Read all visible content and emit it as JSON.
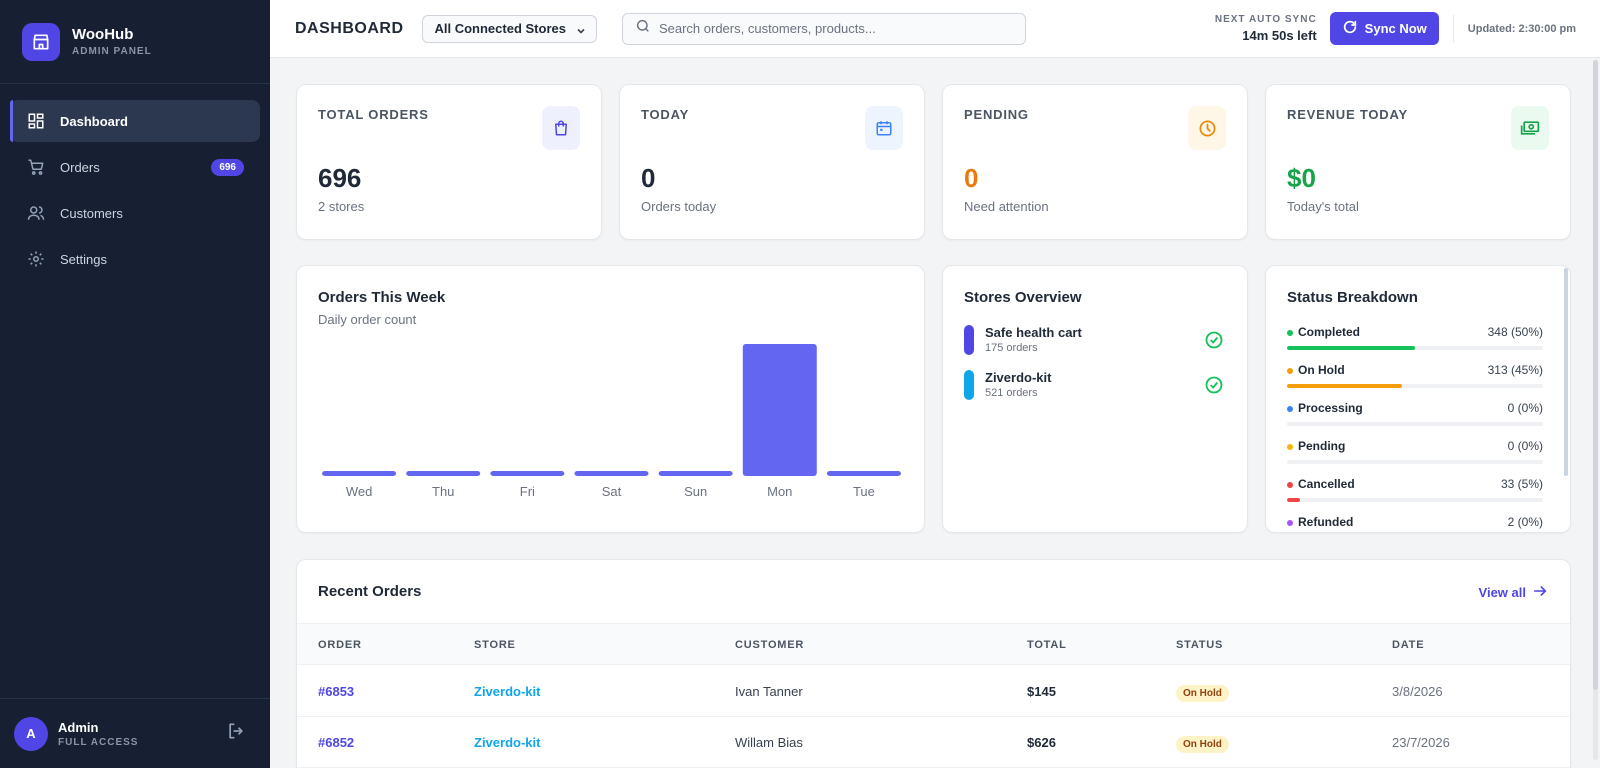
{
  "brand": {
    "name": "WooHub",
    "subtitle": "ADMIN PANEL"
  },
  "sidebar": {
    "items": [
      {
        "label": "Dashboard",
        "icon": "dashboard-icon",
        "active": true
      },
      {
        "label": "Orders",
        "icon": "cart-icon",
        "badge": "696"
      },
      {
        "label": "Customers",
        "icon": "users-icon"
      },
      {
        "label": "Settings",
        "icon": "gear-icon"
      }
    ]
  },
  "user": {
    "initial": "A",
    "name": "Admin",
    "role": "FULL ACCESS"
  },
  "header": {
    "title": "DASHBOARD",
    "store_filter": "All Connected Stores",
    "search_placeholder": "Search orders, customers, products...",
    "sync_label": "NEXT AUTO SYNC",
    "sync_time": "14m 50s left",
    "sync_button": "Sync Now",
    "updated": "Updated: 2:30:00 pm"
  },
  "stats": [
    {
      "label": "TOTAL ORDERS",
      "value": "696",
      "sub": "2 stores",
      "color": "#1f2937",
      "icon": "shopping-bag-icon",
      "icon_bg": "#eef0fd",
      "icon_color": "#4f46e5"
    },
    {
      "label": "TODAY",
      "value": "0",
      "sub": "Orders today",
      "color": "#1f2937",
      "icon": "calendar-icon",
      "icon_bg": "#eef4fd",
      "icon_color": "#3b82f6"
    },
    {
      "label": "PENDING",
      "value": "0",
      "sub": "Need attention",
      "color": "#ea7a0c",
      "icon": "clock-icon",
      "icon_bg": "#fef6e6",
      "icon_color": "#e88a0a"
    },
    {
      "label": "REVENUE TODAY",
      "value": "$0",
      "sub": "Today's total",
      "color": "#16a34a",
      "icon": "cash-icon",
      "icon_bg": "#eafaf0",
      "icon_color": "#16a34a"
    }
  ],
  "weekly": {
    "title": "Orders This Week",
    "subtitle": "Daily order count"
  },
  "chart_data": {
    "type": "bar",
    "title": "Orders This Week",
    "categories": [
      "Wed",
      "Thu",
      "Fri",
      "Sat",
      "Sun",
      "Mon",
      "Tue"
    ],
    "values": [
      0,
      0,
      0,
      0,
      0,
      1,
      0
    ],
    "color": "#6366f1"
  },
  "stores": {
    "title": "Stores Overview",
    "items": [
      {
        "name": "Safe health cart",
        "count": "175 orders",
        "color": "#4f46e5"
      },
      {
        "name": "Ziverdo-kit",
        "count": "521 orders",
        "color": "#0ea5e9"
      }
    ]
  },
  "status": {
    "title": "Status Breakdown",
    "items": [
      {
        "name": "Completed",
        "value": "348 (50%)",
        "pct": 50,
        "color": "#16c05a"
      },
      {
        "name": "On Hold",
        "value": "313 (45%)",
        "pct": 45,
        "color": "#f59e0b"
      },
      {
        "name": "Processing",
        "value": "0 (0%)",
        "pct": 0,
        "color": "#3b82f6"
      },
      {
        "name": "Pending",
        "value": "0 (0%)",
        "pct": 0,
        "color": "#f5b50b"
      },
      {
        "name": "Cancelled",
        "value": "33 (5%)",
        "pct": 5,
        "color": "#ef4444"
      },
      {
        "name": "Refunded",
        "value": "2 (0%)",
        "pct": 0,
        "color": "#a855f7"
      }
    ]
  },
  "recent": {
    "title": "Recent Orders",
    "view_all": "View all",
    "columns": [
      "ORDER",
      "STORE",
      "CUSTOMER",
      "TOTAL",
      "STATUS",
      "DATE"
    ],
    "rows": [
      {
        "order": "#6853",
        "store": "Ziverdo-kit",
        "customer": "Ivan Tanner",
        "total": "$145",
        "status": "On Hold",
        "date": "3/8/2026"
      },
      {
        "order": "#6852",
        "store": "Ziverdo-kit",
        "customer": "Willam Bias",
        "total": "$626",
        "status": "On Hold",
        "date": "23/7/2026"
      }
    ]
  }
}
